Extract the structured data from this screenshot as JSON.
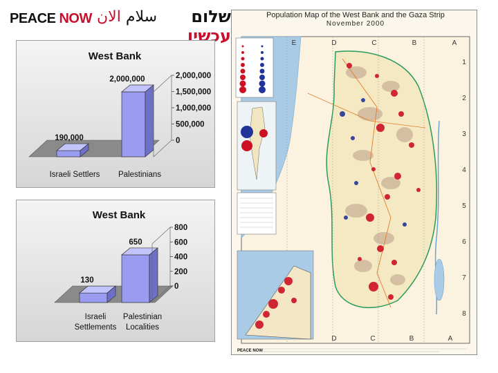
{
  "logo": {
    "english_prefix": "PEACE",
    "english_suffix": "NOW",
    "arabic_black": "سلام",
    "arabic_red": "الان",
    "hebrew_black": "שלום",
    "hebrew_red": "עכשיו"
  },
  "chart_data": [
    {
      "type": "bar",
      "title": "West Bank",
      "categories": [
        "Israeli Settlers",
        "Palestinians"
      ],
      "values": [
        190000,
        2000000
      ],
      "data_labels": [
        "190,000",
        "2,000,000"
      ],
      "xlabel": "",
      "ylabel": "",
      "ylim": [
        0,
        2000000
      ],
      "yticks": [
        "0",
        "500,000",
        "1,000,000",
        "1,500,000",
        "2,000,000"
      ],
      "bar_color": "#9a9cf2",
      "grid": false,
      "style": "3d"
    },
    {
      "type": "bar",
      "title": "West Bank",
      "categories": [
        "Israeli Settlements",
        "Palestinian Localities"
      ],
      "category_lines": [
        [
          "Israeli",
          "Settlements"
        ],
        [
          "Palestinian",
          "Localities"
        ]
      ],
      "values": [
        130,
        650
      ],
      "data_labels": [
        "130",
        "650"
      ],
      "xlabel": "",
      "ylabel": "",
      "ylim": [
        0,
        800
      ],
      "yticks": [
        "0",
        "200",
        "400",
        "600",
        "800"
      ],
      "bar_color": "#9a9cf2",
      "grid": false,
      "style": "3d"
    }
  ],
  "map": {
    "title": "Population Map of the West Bank and the Gaza Strip",
    "subtitle": "November 2000",
    "grid_cols_top": [
      "E",
      "D",
      "C",
      "B",
      "A"
    ],
    "grid_cols_bottom": [
      "D",
      "C",
      "B",
      "A"
    ],
    "grid_rows": [
      "1",
      "2",
      "3",
      "4",
      "5",
      "6",
      "7",
      "8"
    ],
    "footer_brand": "PEACE NOW",
    "colors": {
      "settlement": "#cc1122",
      "palestinian": "#223399",
      "area_a": "#cdb49a",
      "border": "#2a9a5a",
      "water": "#a9cbe6"
    }
  }
}
